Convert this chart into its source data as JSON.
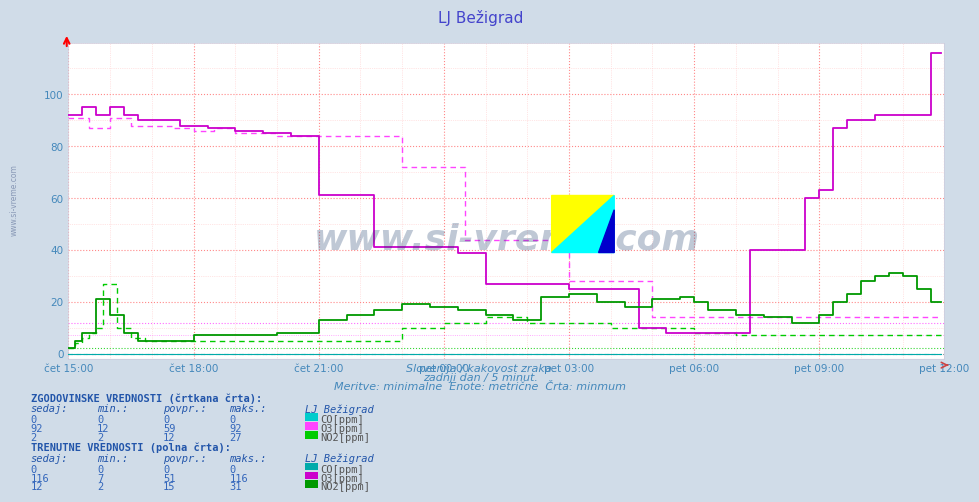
{
  "title": "LJ Bežigrad",
  "title_color": "#4444cc",
  "bg_color": "#d0dce8",
  "plot_bg_color": "#ffffff",
  "grid_color": "#ffaaaa",
  "grid_minor_color": "#ffcccc",
  "xlabel_texts": [
    "čet 15:00",
    "čet 18:00",
    "čet 21:00",
    "pet 00:00",
    "pet 03:00",
    "pet 06:00",
    "pet 09:00",
    "pet 12:00"
  ],
  "yticks": [
    0,
    20,
    40,
    60,
    80,
    100
  ],
  "xrange": [
    0,
    252
  ],
  "yrange": [
    -2,
    116
  ],
  "watermark": "www.si-vreme.com",
  "subtitle1": "Slovenija / kakovost zraka.",
  "subtitle2": "zadnji dan / 5 minut.",
  "subtitle3": "Meritve: minimalne  Enote: metrične  Črta: minmum",
  "subtitle_color": "#4488bb",
  "color_co_hist": "#00cccc",
  "color_o3_hist": "#ff44ff",
  "color_no2_hist": "#00cc00",
  "color_co_curr": "#00aaaa",
  "color_o3_curr": "#cc00cc",
  "color_no2_curr": "#009900",
  "table_header_color": "#2255aa",
  "table_value_color": "#3366bb",
  "hist_sedaj_co": 0,
  "hist_min_co": 0,
  "hist_povpr_co": 0,
  "hist_maks_co": 0,
  "hist_sedaj_o3": 92,
  "hist_min_o3": 12,
  "hist_povpr_o3": 59,
  "hist_maks_o3": 92,
  "hist_sedaj_no2": 2,
  "hist_min_no2": 2,
  "hist_povpr_no2": 12,
  "hist_maks_no2": 27,
  "curr_sedaj_co": 0,
  "curr_min_co": 0,
  "curr_povpr_co": 0,
  "curr_maks_co": 0,
  "curr_sedaj_o3": 116,
  "curr_min_o3": 7,
  "curr_povpr_o3": 51,
  "curr_maks_o3": 116,
  "curr_sedaj_no2": 12,
  "curr_min_no2": 2,
  "curr_povpr_no2": 15,
  "curr_maks_no2": 31
}
